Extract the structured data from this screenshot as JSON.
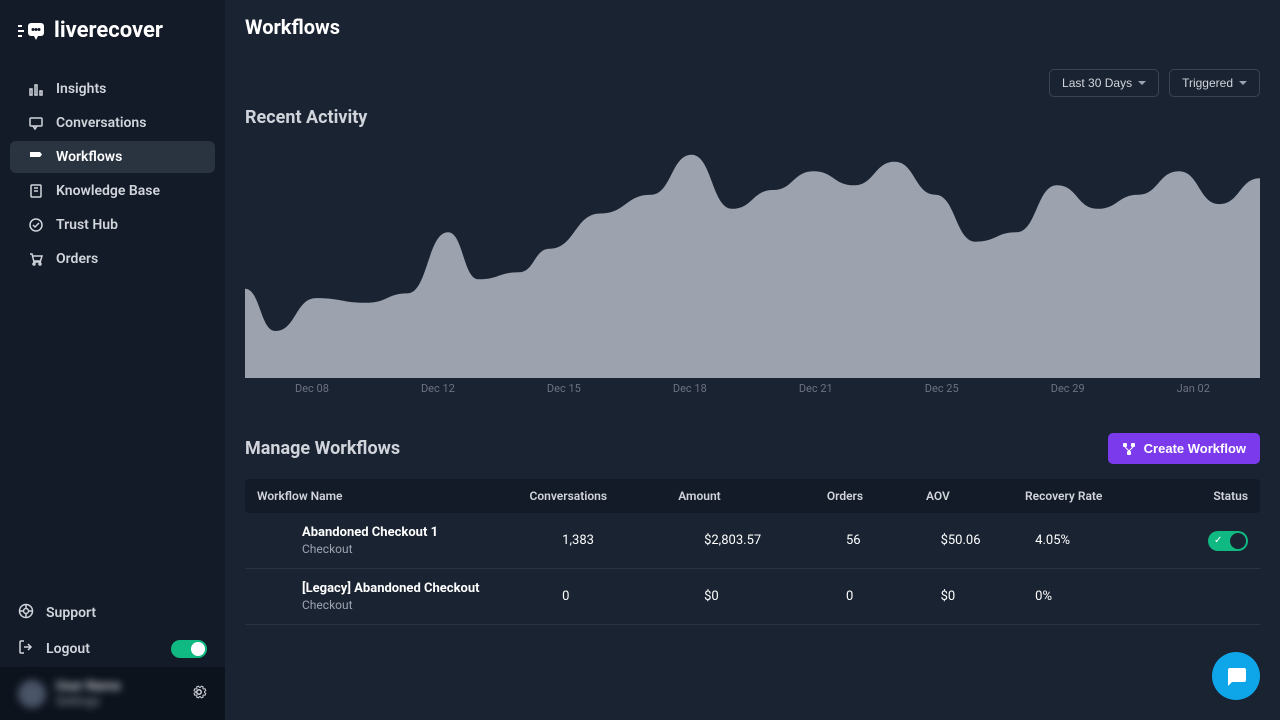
{
  "brand": "liverecover",
  "page_title": "Workflows",
  "sidebar": {
    "items": [
      {
        "label": "Insights",
        "icon": "insights"
      },
      {
        "label": "Conversations",
        "icon": "conversations"
      },
      {
        "label": "Workflows",
        "icon": "workflows",
        "active": true
      },
      {
        "label": "Knowledge Base",
        "icon": "knowledge"
      },
      {
        "label": "Trust Hub",
        "icon": "trust"
      },
      {
        "label": "Orders",
        "icon": "orders"
      }
    ],
    "support_label": "Support",
    "logout_label": "Logout",
    "user_name": "User Name",
    "user_sub": "Settings"
  },
  "filters": {
    "date_range": "Last 30 Days",
    "metric": "Triggered"
  },
  "recent_activity": {
    "title": "Recent Activity",
    "chart": {
      "type": "area",
      "fill_color": "#9ca3af",
      "background_color": "#1a2332",
      "x_labels": [
        "Dec 08",
        "Dec 12",
        "Dec 15",
        "Dec 18",
        "Dec 21",
        "Dec 25",
        "Dec 29",
        "Jan 02"
      ],
      "label_color": "#6b7280",
      "label_fontsize": 11,
      "ylim": [
        0,
        100
      ],
      "points": [
        {
          "x": 0,
          "y": 38
        },
        {
          "x": 3,
          "y": 20
        },
        {
          "x": 7,
          "y": 34
        },
        {
          "x": 12,
          "y": 32
        },
        {
          "x": 16,
          "y": 36
        },
        {
          "x": 20,
          "y": 62
        },
        {
          "x": 23,
          "y": 42
        },
        {
          "x": 27,
          "y": 45
        },
        {
          "x": 30,
          "y": 55
        },
        {
          "x": 35,
          "y": 70
        },
        {
          "x": 40,
          "y": 78
        },
        {
          "x": 44,
          "y": 95
        },
        {
          "x": 48,
          "y": 72
        },
        {
          "x": 52,
          "y": 80
        },
        {
          "x": 56,
          "y": 88
        },
        {
          "x": 60,
          "y": 82
        },
        {
          "x": 64,
          "y": 92
        },
        {
          "x": 68,
          "y": 78
        },
        {
          "x": 72,
          "y": 58
        },
        {
          "x": 76,
          "y": 62
        },
        {
          "x": 80,
          "y": 82
        },
        {
          "x": 84,
          "y": 72
        },
        {
          "x": 88,
          "y": 78
        },
        {
          "x": 92,
          "y": 88
        },
        {
          "x": 96,
          "y": 74
        },
        {
          "x": 100,
          "y": 85
        }
      ]
    }
  },
  "manage": {
    "title": "Manage Workflows",
    "create_button": "Create Workflow",
    "columns": [
      "Workflow Name",
      "Conversations",
      "Amount",
      "Orders",
      "AOV",
      "Recovery Rate",
      "Status"
    ],
    "rows": [
      {
        "name": "Abandoned Checkout 1",
        "sub": "Checkout",
        "conversations": "1,383",
        "amount": "$2,803.57",
        "orders": "56",
        "aov": "$50.06",
        "recovery_rate": "4.05%",
        "status": true
      },
      {
        "name": "[Legacy] Abandoned Checkout",
        "sub": "Checkout",
        "conversations": "0",
        "amount": "$0",
        "orders": "0",
        "aov": "$0",
        "recovery_rate": "0%",
        "status": false
      }
    ]
  },
  "colors": {
    "sidebar_bg": "#131b28",
    "main_bg": "#1a2332",
    "accent": "#7c3aed",
    "toggle_on": "#10b981",
    "chat": "#0ea5e9"
  }
}
